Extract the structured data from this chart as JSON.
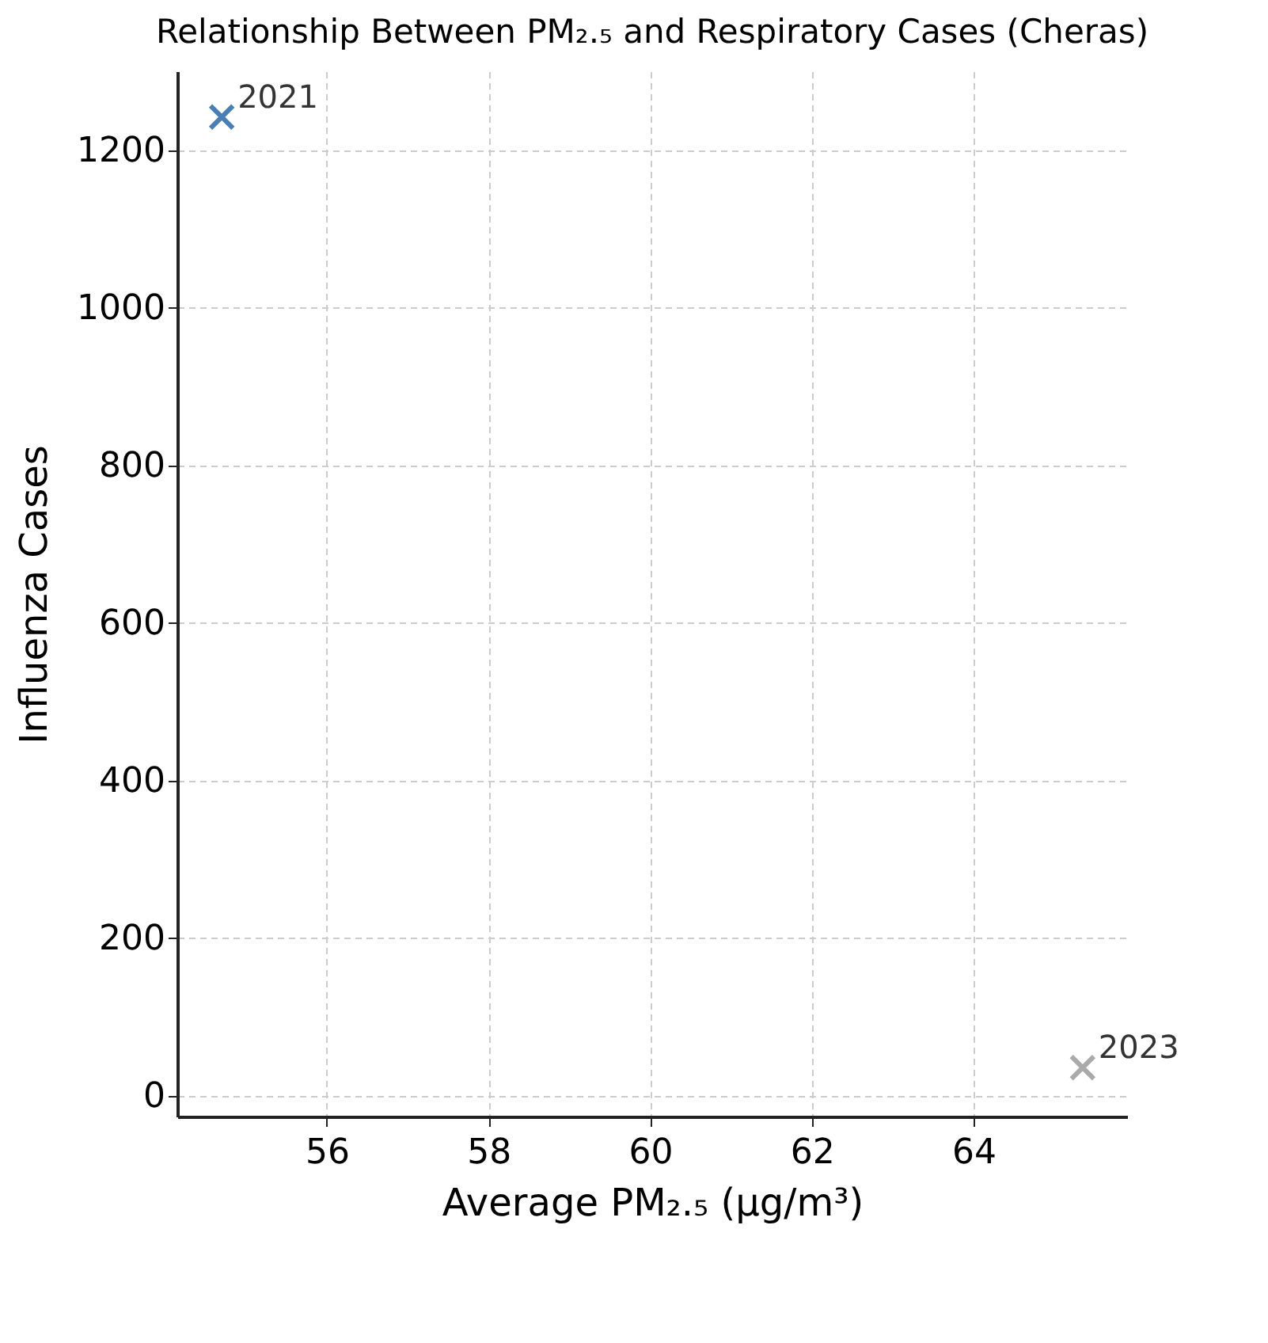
{
  "chart_data": {
    "type": "scatter",
    "title": "Relationship Between PM₂.₅ and Respiratory Cases (Cheras)",
    "xlabel": "Average PM₂.₅ (µg/m³)",
    "ylabel": "Influenza Cases",
    "xlim": [
      54.15,
      65.9
    ],
    "ylim": [
      -27,
      1300
    ],
    "xticks": [
      56,
      58,
      60,
      62,
      64
    ],
    "yticks": [
      0,
      200,
      400,
      600,
      800,
      1000,
      1200
    ],
    "grid": true,
    "marker": "cross",
    "series": [
      {
        "name": "2021",
        "color": "#4a7fb5",
        "x": [
          54.7
        ],
        "values": [
          1242
        ]
      },
      {
        "name": "2023",
        "color": "#aaaaaa",
        "x": [
          65.35
        ],
        "values": [
          35
        ]
      }
    ]
  }
}
